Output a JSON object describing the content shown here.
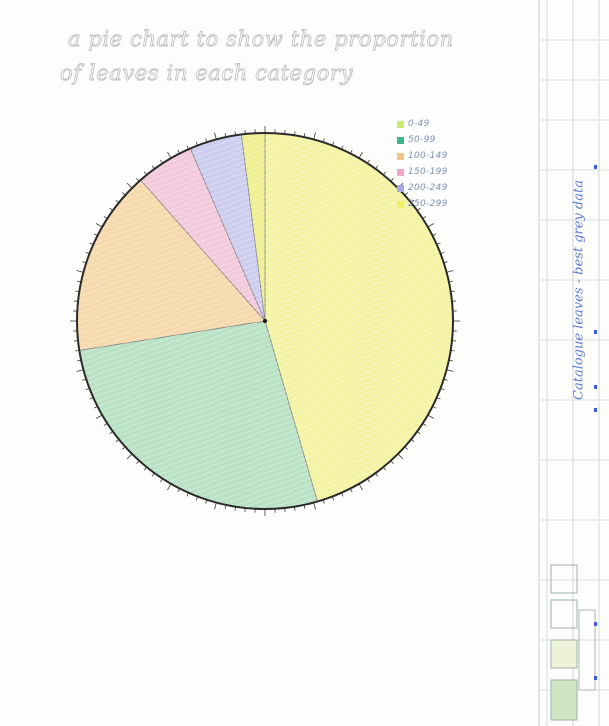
{
  "heading": {
    "line1": "a pie chart to show the proportion",
    "line2": "of leaves in each category"
  },
  "side_note": "Catalogue leaves - best grey data",
  "chart_data": {
    "type": "pie",
    "title": "",
    "legend_position": "top-right",
    "start_angle_deg": 0,
    "direction": "clockwise",
    "slices": [
      {
        "label": "0-49",
        "value": 45.5,
        "color": "#f4f3a4"
      },
      {
        "label": "50-99",
        "value": 27.0,
        "color": "#b9e2c5"
      },
      {
        "label": "100-149",
        "value": 16.0,
        "color": "#f6d9ac"
      },
      {
        "label": "150-199",
        "value": 5.0,
        "color": "#f3c9dc"
      },
      {
        "label": "200-249",
        "value": 4.5,
        "color": "#cdcdef"
      },
      {
        "label": "250-299",
        "value": 2.0,
        "color": "#f0ef92"
      }
    ],
    "legend": [
      {
        "label": "0-49",
        "color": "#c9ec6e"
      },
      {
        "label": "50-99",
        "color": "#3fb58c"
      },
      {
        "label": "100-149",
        "color": "#f2c48d"
      },
      {
        "label": "150-199",
        "color": "#f2a6c6"
      },
      {
        "label": "200-249",
        "color": "#a7a7e8"
      },
      {
        "label": "250-299",
        "color": "#eef06a"
      }
    ]
  }
}
